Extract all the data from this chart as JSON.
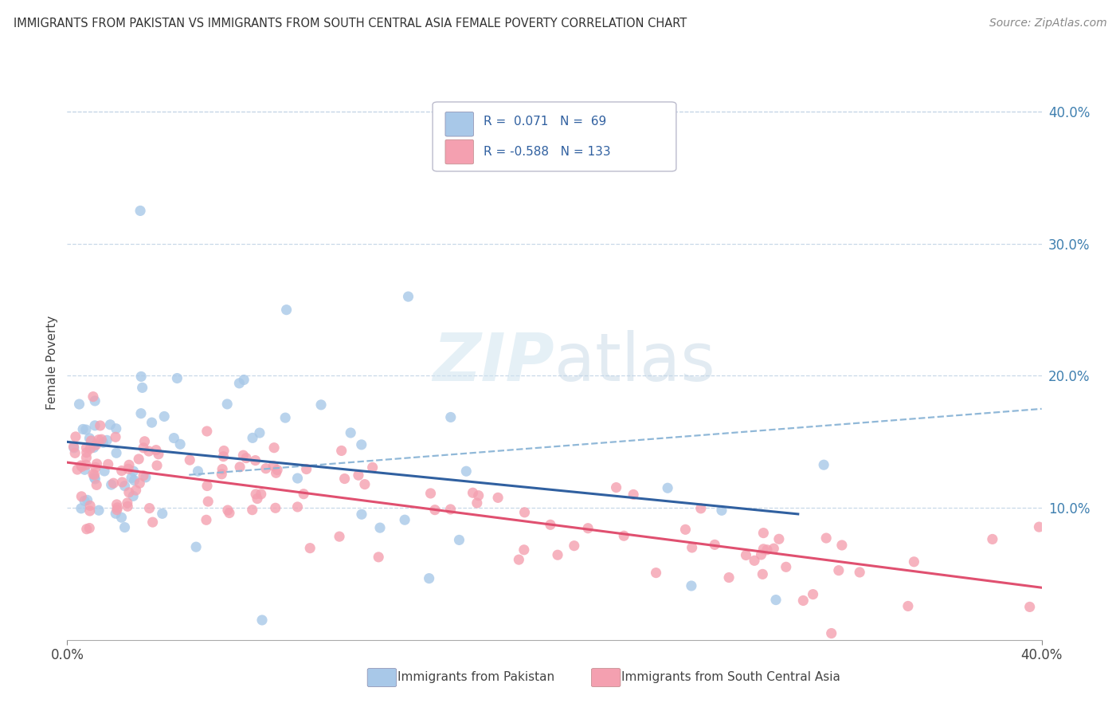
{
  "title": "IMMIGRANTS FROM PAKISTAN VS IMMIGRANTS FROM SOUTH CENTRAL ASIA FEMALE POVERTY CORRELATION CHART",
  "source": "Source: ZipAtlas.com",
  "ylabel": "Female Poverty",
  "xlim": [
    0.0,
    0.4
  ],
  "ylim": [
    0.0,
    0.42
  ],
  "yticks": [
    0.1,
    0.2,
    0.3,
    0.4
  ],
  "ytick_labels": [
    "10.0%",
    "20.0%",
    "30.0%",
    "40.0%"
  ],
  "xtick_left": "0.0%",
  "xtick_right": "40.0%",
  "color_blue": "#A8C8E8",
  "color_pink": "#F4A0B0",
  "line_color_blue": "#3060A0",
  "line_color_pink": "#E05070",
  "line_color_dashed": "#90B8D8",
  "background_color": "#FFFFFF",
  "grid_color": "#C8D8E8",
  "label_pakistan": "Immigrants from Pakistan",
  "label_sca": "Immigrants from South Central Asia",
  "legend_line1": "R =  0.071  N =  69",
  "legend_line2": "R = -0.588  N = 133",
  "pak_trend_x": [
    0.0,
    0.3
  ],
  "pak_trend_y": [
    0.125,
    0.145
  ],
  "sca_trend_x": [
    0.0,
    0.4
  ],
  "sca_trend_y": [
    0.135,
    0.045
  ],
  "dashed_trend_x": [
    0.05,
    0.4
  ],
  "dashed_trend_y": [
    0.125,
    0.175
  ]
}
